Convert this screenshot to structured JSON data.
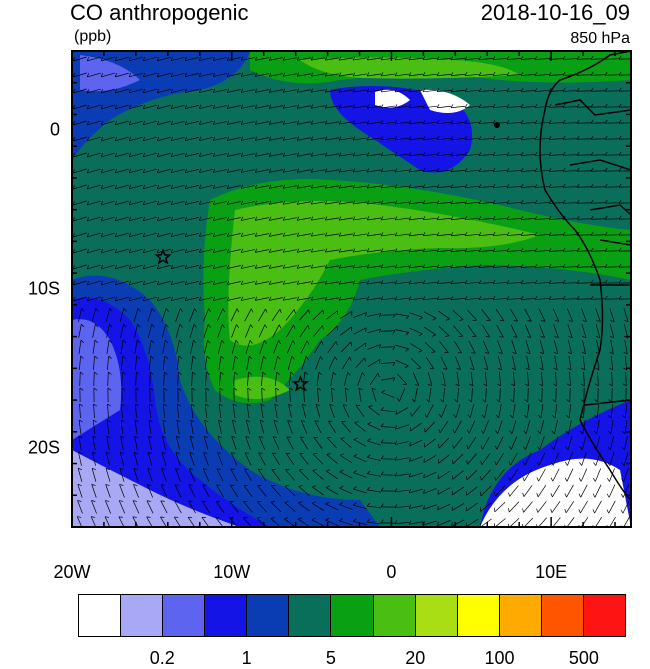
{
  "header": {
    "title": "CO anthropogenic",
    "units": "(ppb)",
    "time": "2018-10-16_09",
    "level": "850 hPa"
  },
  "map": {
    "lon_range": [
      -20,
      15
    ],
    "lat_range": [
      -25,
      5
    ],
    "lon_ticks": [
      {
        "lon": -20,
        "label": "20W"
      },
      {
        "lon": -10,
        "label": "10W"
      },
      {
        "lon": 0,
        "label": "0"
      },
      {
        "lon": 10,
        "label": "10E"
      }
    ],
    "lat_ticks": [
      {
        "lat": 0,
        "label": "0"
      },
      {
        "lat": -10,
        "label": "10S"
      },
      {
        "lat": -20,
        "label": "20S"
      }
    ],
    "stars": [
      {
        "lon": -14.3,
        "lat": -8.0
      },
      {
        "lon": -5.7,
        "lat": -16.0
      }
    ]
  },
  "colorbar": {
    "colors": [
      "#ffffff",
      "#a8a8f4",
      "#5c64f0",
      "#1414e6",
      "#0a3cb4",
      "#096e5a",
      "#0aa014",
      "#4bbe14",
      "#aade14",
      "#ffff00",
      "#ffaa00",
      "#ff5500",
      "#ff1414"
    ],
    "labels": [
      {
        "after_box": 2,
        "text": "0.2"
      },
      {
        "after_box": 4,
        "text": "1"
      },
      {
        "after_box": 6,
        "text": "5"
      },
      {
        "after_box": 8,
        "text": "20"
      },
      {
        "after_box": 10,
        "text": "100"
      },
      {
        "after_box": 12,
        "text": "500"
      }
    ]
  }
}
